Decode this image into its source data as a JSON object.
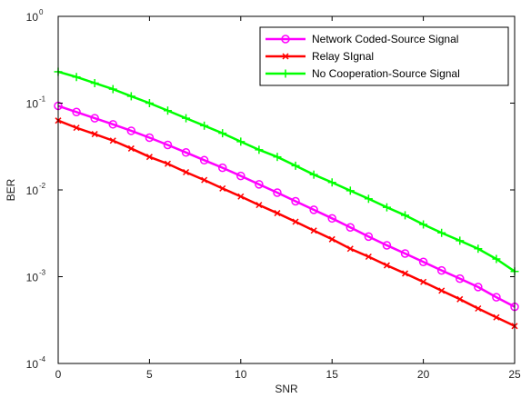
{
  "chart_data": {
    "type": "line",
    "xlabel": "SNR",
    "ylabel": "BER",
    "xlim": [
      0,
      25
    ],
    "ylim": [
      0.0001,
      1
    ],
    "yscale": "log",
    "grid": false,
    "legend_position": "top-right",
    "x_ticks": [
      "0",
      "5",
      "10",
      "15",
      "20",
      "25"
    ],
    "y_ticks": [
      {
        "base": "10",
        "exp": "-4",
        "value": 0.0001
      },
      {
        "base": "10",
        "exp": "-3",
        "value": 0.001
      },
      {
        "base": "10",
        "exp": "-2",
        "value": 0.01
      },
      {
        "base": "10",
        "exp": "-1",
        "value": 0.1
      },
      {
        "base": "10",
        "exp": "0",
        "value": 1
      }
    ],
    "x": [
      0,
      1,
      2,
      3,
      4,
      5,
      6,
      7,
      8,
      9,
      10,
      11,
      12,
      13,
      14,
      15,
      16,
      17,
      18,
      19,
      20,
      21,
      22,
      23,
      24,
      25
    ],
    "series": [
      {
        "name": "Network Coded-Source Signal",
        "color": "#ff00ff",
        "marker": "circle",
        "values": [
          0.093,
          0.079,
          0.067,
          0.057,
          0.048,
          0.04,
          0.033,
          0.027,
          0.022,
          0.018,
          0.0145,
          0.0116,
          0.0093,
          0.0074,
          0.0059,
          0.0047,
          0.0037,
          0.0029,
          0.0023,
          0.00185,
          0.00148,
          0.00118,
          0.00095,
          0.00076,
          0.00058,
          0.00045
        ]
      },
      {
        "name": "Relay SIgnal",
        "color": "#ff0000",
        "marker": "x",
        "values": [
          0.063,
          0.052,
          0.044,
          0.037,
          0.03,
          0.024,
          0.02,
          0.016,
          0.013,
          0.0104,
          0.0084,
          0.0067,
          0.0054,
          0.0043,
          0.0034,
          0.0027,
          0.0021,
          0.0017,
          0.00135,
          0.00109,
          0.00087,
          0.00069,
          0.00055,
          0.00043,
          0.00034,
          0.00027
        ]
      },
      {
        "name": "No Cooperation-Source Signal",
        "color": "#00ff00",
        "marker": "plus",
        "values": [
          0.23,
          0.2,
          0.17,
          0.145,
          0.12,
          0.1,
          0.082,
          0.067,
          0.055,
          0.045,
          0.036,
          0.029,
          0.024,
          0.019,
          0.015,
          0.0122,
          0.0098,
          0.0079,
          0.0063,
          0.0051,
          0.004,
          0.0032,
          0.0026,
          0.0021,
          0.0016,
          0.00115
        ]
      }
    ]
  }
}
